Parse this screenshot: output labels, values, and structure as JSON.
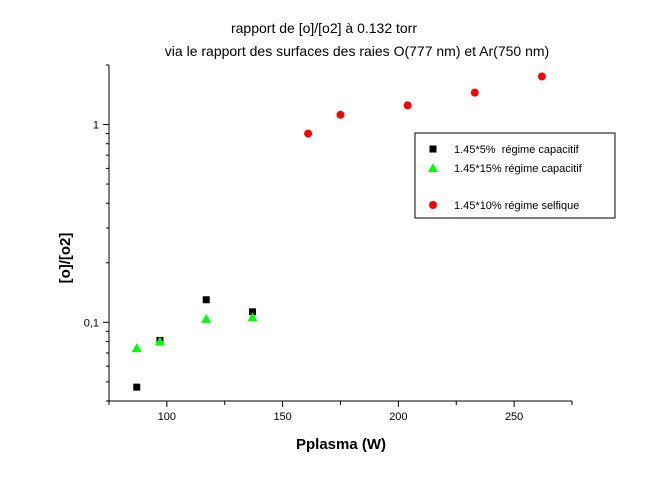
{
  "chart_data": {
    "type": "scatter",
    "title": "rapport de [o]/[o2] à 0.132 torr",
    "subtitle": "via le rapport des surfaces des raies O(777 nm) et Ar(750 nm)",
    "xlabel": "Pplasma (W)",
    "ylabel": "[o]/[o2]",
    "xlim": [
      75,
      275
    ],
    "ylim": [
      0.04,
      2
    ],
    "yscale": "log",
    "grid": false,
    "legend_position": "right",
    "x_ticks": [
      {
        "value": 100,
        "label": "100"
      },
      {
        "value": 150,
        "label": "150"
      },
      {
        "value": 200,
        "label": "200"
      },
      {
        "value": 250,
        "label": "250"
      }
    ],
    "y_ticks": [
      {
        "value": 0.1,
        "label": "0,1"
      },
      {
        "value": 1,
        "label": "1"
      }
    ],
    "series": [
      {
        "name": "1.45*5%  régime capacitif",
        "marker": "square",
        "color": "#000000",
        "points": [
          {
            "x": 87,
            "y": 0.047
          },
          {
            "x": 97,
            "y": 0.081
          },
          {
            "x": 117,
            "y": 0.13
          },
          {
            "x": 137,
            "y": 0.113
          }
        ]
      },
      {
        "name": "1.45*15% régime capacitif",
        "marker": "triangle",
        "color": "#00ff00",
        "points": [
          {
            "x": 87,
            "y": 0.074
          },
          {
            "x": 97,
            "y": 0.08
          },
          {
            "x": 117,
            "y": 0.104
          },
          {
            "x": 137,
            "y": 0.106
          }
        ]
      },
      {
        "name": "1.45*10% régime selfique",
        "marker": "circle",
        "color": "#ff0000",
        "points": [
          {
            "x": 161,
            "y": 0.9
          },
          {
            "x": 175,
            "y": 1.12
          },
          {
            "x": 204,
            "y": 1.25
          },
          {
            "x": 233,
            "y": 1.45
          },
          {
            "x": 262,
            "y": 1.75
          }
        ]
      }
    ]
  }
}
